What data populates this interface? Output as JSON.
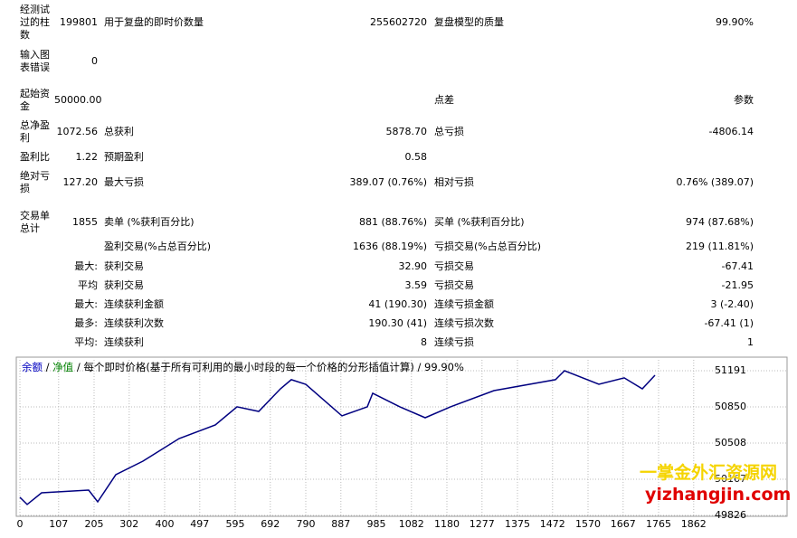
{
  "report": {
    "rows": [
      {
        "label": "经测试过的柱数",
        "value": "199801",
        "label2": "用于复盘的即时价数量",
        "value2": "255602720",
        "label3": "复盘模型的质量",
        "value3": "99.90%"
      },
      {
        "label": "输入图表错误",
        "value": "0"
      },
      {
        "label": "起始资金",
        "value": "50000.00",
        "label3": "点差",
        "value3": "参数"
      },
      {
        "label": "总净盈利",
        "value": "1072.56",
        "label2": "总获利",
        "value2": "5878.70",
        "label3": "总亏损",
        "value3": "-4806.14"
      },
      {
        "label": "盈利比",
        "value": "1.22",
        "label2": "预期盈利",
        "value2": "0.58"
      },
      {
        "label": "绝对亏损",
        "value": "127.20",
        "label2": "最大亏损",
        "value2": "389.07 (0.76%)",
        "label3": "相对亏损",
        "value3": "0.76% (389.07)"
      },
      {
        "label": "交易单总计",
        "value": "1855",
        "label2": "卖单 (%获利百分比)",
        "value2": "881 (88.76%)",
        "label3": "买单 (%获利百分比)",
        "value3": "974 (87.68%)"
      },
      {
        "label2": "盈利交易(%占总百分比)",
        "value2": "1636 (88.19%)",
        "label3": "亏损交易(%占总百分比)",
        "value3": "219 (11.81%)"
      },
      {
        "value": "最大:",
        "label2": "获利交易",
        "value2": "32.90",
        "label3": "亏损交易",
        "value3": "-67.41"
      },
      {
        "value": "平均",
        "label2": "获利交易",
        "value2": "3.59",
        "label3": "亏损交易",
        "value3": "-21.95"
      },
      {
        "value": "最大:",
        "label2": "连续获利金额",
        "value2": "41 (190.30)",
        "label3": "连续亏损金额",
        "value3": "3 (-2.40)"
      },
      {
        "value": "最多:",
        "label2": "连续获利次数",
        "value2": "190.30 (41)",
        "label3": "连续亏损次数",
        "value3": "-67.41 (1)"
      },
      {
        "value": "平均:",
        "label2": "连续获利",
        "value2": "8",
        "label3": "连续亏损",
        "value3": "1"
      }
    ]
  },
  "chart_data": {
    "type": "line",
    "legend": [
      "余额",
      "净值",
      "每个即时价格(基于所有可利用的最小时段的每一个价格的分形插值计算)",
      "99.90%"
    ],
    "legend_colors": [
      "#0000c0",
      "#008000",
      "#000000",
      "#000000"
    ],
    "x": [
      0,
      20,
      60,
      190,
      215,
      265,
      340,
      440,
      540,
      600,
      660,
      720,
      750,
      790,
      890,
      960,
      975,
      1050,
      1120,
      1190,
      1310,
      1480,
      1505,
      1600,
      1670,
      1720,
      1755
    ],
    "series": [
      {
        "name": "余额",
        "color": "#000080",
        "values": [
          49997,
          49929,
          50039,
          50065,
          49954,
          50210,
          50338,
          50551,
          50679,
          50850,
          50807,
          51020,
          51106,
          51063,
          50765,
          50850,
          50978,
          50850,
          50747,
          50850,
          51003,
          51106,
          51191,
          51063,
          51123,
          51020,
          51148
        ]
      }
    ],
    "xlim": [
      0,
      1900
    ],
    "ylim": [
      49826,
      51293
    ],
    "xticks": [
      0,
      107,
      205,
      302,
      400,
      497,
      595,
      692,
      790,
      887,
      985,
      1082,
      1180,
      1277,
      1375,
      1472,
      1570,
      1667,
      1765,
      1862
    ],
    "yticks": [
      49826,
      50167,
      50508,
      50850,
      51191
    ],
    "grid": true
  },
  "watermark": {
    "name": "一掌金外汇资源网",
    "url": "yizhangjin.com"
  }
}
